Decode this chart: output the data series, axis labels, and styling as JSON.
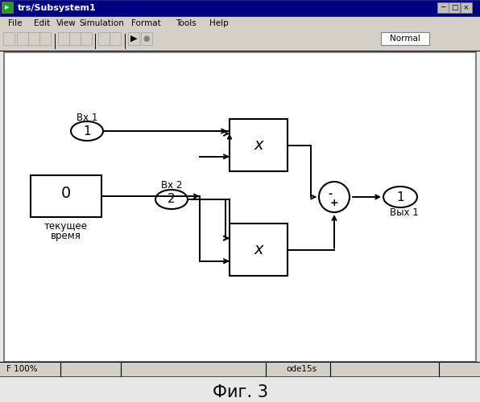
{
  "title": "Фиг. 3",
  "window_title": "trs/Subsystem1",
  "menu_items": [
    "File",
    "Edit",
    "View",
    "Simulation",
    "Format",
    "Tools",
    "Help"
  ],
  "status_left": "F 100%",
  "status_right": "ode15s",
  "normal_text": "Normal",
  "bg_color": "#d4d0c8",
  "canvas_color": "#ffffff",
  "input1_label": "Вх 1",
  "input1_val": "1",
  "input2_label": "Вх 2",
  "input2_val": "2",
  "clock_label": "0",
  "clock_sub1": "текущее",
  "clock_sub2": "время",
  "output_label": "Вых 1",
  "output_val": "1",
  "mult_symbol": "x",
  "sum_minus": "-",
  "sum_plus": "+"
}
